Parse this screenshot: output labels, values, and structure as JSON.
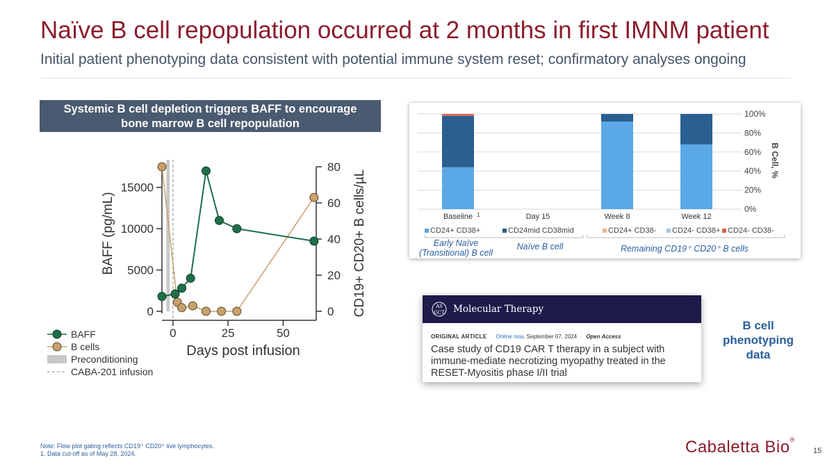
{
  "slide": {
    "title": "Naïve B cell repopulation occurred at 2 months in first IMNM patient",
    "subtitle": "Initial patient phenotyping data consistent with potential immune system reset; confirmatory analyses ongoing",
    "page_number": "15"
  },
  "banner": {
    "line1": "Systemic B cell depletion triggers BAFF to encourage",
    "line2": "bone marrow B cell repopulation"
  },
  "chart_data": [
    {
      "type": "line",
      "title": "",
      "xlabel": "Days post infusion",
      "ylabel": "BAFF (pg/mL)",
      "y2label": "CD19+ CD20+ B cells/µL",
      "xlim": [
        -5,
        65
      ],
      "ylim": [
        0,
        17500
      ],
      "y2lim": [
        0,
        80
      ],
      "x_ticks": [
        "0",
        "25",
        "50"
      ],
      "x_tick_values": [
        0,
        25,
        50
      ],
      "y_ticks": [
        "0",
        "5000",
        "10000",
        "15000"
      ],
      "y_tick_values": [
        0,
        5000,
        10000,
        15000
      ],
      "y2_ticks": [
        "0",
        "20",
        "40",
        "60",
        "80"
      ],
      "y2_tick_values": [
        0,
        20,
        40,
        60,
        80
      ],
      "series": [
        {
          "name": "BAFF",
          "axis": "left",
          "color": "#1f6e4a",
          "x": [
            -5,
            1,
            4,
            8,
            15,
            21,
            29,
            64
          ],
          "y": [
            1800,
            2100,
            2800,
            4000,
            17000,
            11000,
            10000,
            8500
          ]
        },
        {
          "name": "B cells",
          "axis": "right",
          "color": "#c8a06a",
          "x": [
            -5,
            2,
            4,
            9,
            15,
            22,
            29,
            64
          ],
          "y": [
            80,
            5,
            2,
            3,
            0,
            0,
            0,
            63
          ]
        }
      ],
      "preconditioning": {
        "name": "Preconditioning",
        "x_range": [
          -3,
          -1.5
        ]
      },
      "infusion": {
        "name": "CABA-201 infusion",
        "x": 0
      },
      "legend": [
        "BAFF",
        "B cells",
        "Preconditioning",
        "CABA-201 infusion"
      ]
    },
    {
      "type": "bar",
      "stacked": true,
      "categories": [
        "Baseline",
        "Day 15",
        "Week 8",
        "Week 12"
      ],
      "baseline_footnote": "1",
      "ylabel": "B Cell, %",
      "ylim": [
        0,
        100
      ],
      "y_ticks": [
        "0%",
        "20%",
        "40%",
        "60%",
        "80%",
        "100%"
      ],
      "y_tick_values": [
        0,
        20,
        40,
        60,
        80,
        100
      ],
      "series": [
        {
          "name": "CD24+ CD38+",
          "color": "#5aa8e6",
          "values": [
            44,
            0,
            92,
            68
          ]
        },
        {
          "name": "CD24mid CD38mid",
          "color": "#2a5f8f",
          "values": [
            54,
            0,
            8,
            32
          ]
        },
        {
          "name": "CD24+ CD38-",
          "color": "#f2b48a",
          "values": [
            0,
            0,
            0,
            0
          ]
        },
        {
          "name": "CD24- CD38+",
          "color": "#a8c8e0",
          "values": [
            0,
            0,
            0,
            0
          ]
        },
        {
          "name": "CD24- CD38-",
          "color": "#d9654a",
          "values": [
            2,
            0,
            0,
            0
          ]
        }
      ],
      "groups": [
        {
          "label_lines": [
            "Early Naïve",
            "(Transitional) B cell"
          ]
        },
        {
          "label_lines": [
            "Naïve B cell"
          ]
        },
        {
          "label_lines": [
            "Remaining CD19⁺ CD20⁺ B cells"
          ]
        }
      ]
    }
  ],
  "paper": {
    "journal": "Molecular Therapy",
    "logo_text": "ASGCT",
    "article_type": "ORIGINAL ARTICLE",
    "online": "Online now",
    "date": ", September 07, 2024",
    "access": "Open Access",
    "separator": "·",
    "title": "Case study of CD19 CAR T therapy in a subject with immune-mediate necrotizing myopathy treated in the RESET-Myositis phase I/II trial"
  },
  "callout": {
    "line1": "B cell",
    "line2": "phenotyping",
    "line3": "data"
  },
  "footnotes": {
    "note": "Note: Flow plot gating reflects CD19⁺ CD20⁺ live lymphocytes.",
    "note1": "1.  Data cut-off as of May 28, 2024."
  },
  "company": {
    "name": "Cabaletta Bio",
    "mark": "®"
  }
}
